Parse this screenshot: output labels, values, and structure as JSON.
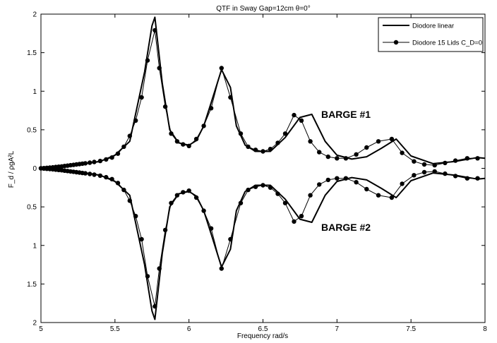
{
  "colors": {
    "line": "#000000",
    "background": "#ffffff"
  },
  "chart_data": {
    "type": "line",
    "title": "QTF in Sway Gap=12cm θ=0°",
    "xlabel": "Frequency rad/s",
    "ylabel": "F_d / ρgA²L",
    "xlim": [
      5,
      8
    ],
    "ylim": [
      -2,
      2
    ],
    "xticks": [
      "5",
      "5.5",
      "6",
      "6.5",
      "7",
      "7.5",
      "8"
    ],
    "yticks": [
      "2",
      "1.5",
      "1",
      "0.5",
      "0",
      "0.5",
      "1",
      "1.5",
      "2"
    ],
    "grid": false,
    "legend": {
      "placement": "top-right",
      "entries": [
        {
          "label": "Diodore linear",
          "marker": "none"
        },
        {
          "label": "Diodore 15 Lids C_D=0",
          "marker": "circle"
        }
      ]
    },
    "annotations": [
      "BARGE #1",
      "BARGE #2"
    ],
    "series": [
      {
        "name": "Diodore linear (BARGE #1)",
        "x": [
          5.0,
          5.1,
          5.2,
          5.3,
          5.4,
          5.5,
          5.6,
          5.7,
          5.75,
          5.77,
          5.82,
          5.87,
          5.93,
          6.0,
          6.05,
          6.1,
          6.15,
          6.22,
          6.28,
          6.32,
          6.38,
          6.45,
          6.55,
          6.65,
          6.75,
          6.83,
          6.92,
          7.0,
          7.1,
          7.2,
          7.3,
          7.4,
          7.5,
          7.65,
          7.8,
          7.95,
          8.0
        ],
        "y": [
          0.0,
          0.01,
          0.03,
          0.06,
          0.09,
          0.17,
          0.35,
          1.25,
          1.85,
          1.96,
          1.1,
          0.5,
          0.33,
          0.3,
          0.36,
          0.55,
          0.85,
          1.28,
          1.05,
          0.55,
          0.3,
          0.22,
          0.22,
          0.4,
          0.66,
          0.7,
          0.35,
          0.17,
          0.12,
          0.15,
          0.26,
          0.38,
          0.16,
          0.06,
          0.09,
          0.14,
          0.13
        ]
      },
      {
        "name": "Diodore 15 Lids C_D=0 (BARGE #1)",
        "x": [
          5.0,
          5.02,
          5.04,
          5.06,
          5.08,
          5.1,
          5.12,
          5.14,
          5.16,
          5.18,
          5.2,
          5.22,
          5.24,
          5.26,
          5.28,
          5.3,
          5.33,
          5.36,
          5.4,
          5.44,
          5.48,
          5.52,
          5.56,
          5.6,
          5.64,
          5.68,
          5.72,
          5.77,
          5.8,
          5.84,
          5.88,
          5.92,
          5.96,
          6.0,
          6.05,
          6.1,
          6.15,
          6.22,
          6.28,
          6.35,
          6.4,
          6.45,
          6.5,
          6.55,
          6.6,
          6.65,
          6.71,
          6.76,
          6.82,
          6.88,
          6.94,
          7.0,
          7.06,
          7.13,
          7.2,
          7.28,
          7.37,
          7.44,
          7.52,
          7.59,
          7.66,
          7.73,
          7.8,
          7.88,
          7.95
        ],
        "y": [
          0.0,
          0.003,
          0.006,
          0.009,
          0.013,
          0.017,
          0.021,
          0.025,
          0.03,
          0.035,
          0.04,
          0.045,
          0.05,
          0.055,
          0.06,
          0.065,
          0.073,
          0.082,
          0.095,
          0.115,
          0.14,
          0.19,
          0.28,
          0.42,
          0.62,
          0.92,
          1.4,
          1.79,
          1.3,
          0.8,
          0.45,
          0.35,
          0.31,
          0.29,
          0.38,
          0.55,
          0.78,
          1.3,
          0.92,
          0.45,
          0.28,
          0.24,
          0.22,
          0.25,
          0.33,
          0.45,
          0.69,
          0.62,
          0.35,
          0.21,
          0.15,
          0.13,
          0.13,
          0.18,
          0.27,
          0.35,
          0.38,
          0.2,
          0.09,
          0.05,
          0.04,
          0.07,
          0.1,
          0.13,
          0.13
        ]
      },
      {
        "name": "Diodore linear (BARGE #2)",
        "x": [
          5.0,
          5.1,
          5.2,
          5.3,
          5.4,
          5.5,
          5.6,
          5.7,
          5.75,
          5.77,
          5.82,
          5.87,
          5.93,
          6.0,
          6.05,
          6.1,
          6.15,
          6.22,
          6.28,
          6.32,
          6.38,
          6.45,
          6.55,
          6.65,
          6.75,
          6.83,
          6.92,
          7.0,
          7.1,
          7.2,
          7.3,
          7.4,
          7.5,
          7.65,
          7.8,
          7.95,
          8.0
        ],
        "y": [
          0.0,
          -0.01,
          -0.03,
          -0.06,
          -0.09,
          -0.17,
          -0.35,
          -1.25,
          -1.85,
          -1.96,
          -1.1,
          -0.5,
          -0.33,
          -0.3,
          -0.36,
          -0.55,
          -0.85,
          -1.28,
          -1.05,
          -0.55,
          -0.3,
          -0.22,
          -0.22,
          -0.4,
          -0.66,
          -0.7,
          -0.35,
          -0.17,
          -0.12,
          -0.15,
          -0.26,
          -0.38,
          -0.16,
          -0.06,
          -0.09,
          -0.14,
          -0.13
        ]
      },
      {
        "name": "Diodore 15 Lids C_D=0 (BARGE #2)",
        "x": [
          5.0,
          5.02,
          5.04,
          5.06,
          5.08,
          5.1,
          5.12,
          5.14,
          5.16,
          5.18,
          5.2,
          5.22,
          5.24,
          5.26,
          5.28,
          5.3,
          5.33,
          5.36,
          5.4,
          5.44,
          5.48,
          5.52,
          5.56,
          5.6,
          5.64,
          5.68,
          5.72,
          5.77,
          5.8,
          5.84,
          5.88,
          5.92,
          5.96,
          6.0,
          6.05,
          6.1,
          6.15,
          6.22,
          6.28,
          6.35,
          6.4,
          6.45,
          6.5,
          6.55,
          6.6,
          6.65,
          6.71,
          6.76,
          6.82,
          6.88,
          6.94,
          7.0,
          7.06,
          7.13,
          7.2,
          7.28,
          7.37,
          7.44,
          7.52,
          7.59,
          7.66,
          7.73,
          7.8,
          7.88,
          7.95
        ],
        "y": [
          0.0,
          -0.003,
          -0.006,
          -0.009,
          -0.013,
          -0.017,
          -0.021,
          -0.025,
          -0.03,
          -0.035,
          -0.04,
          -0.045,
          -0.05,
          -0.055,
          -0.06,
          -0.065,
          -0.073,
          -0.082,
          -0.095,
          -0.115,
          -0.14,
          -0.19,
          -0.28,
          -0.42,
          -0.62,
          -0.92,
          -1.4,
          -1.79,
          -1.3,
          -0.8,
          -0.45,
          -0.35,
          -0.31,
          -0.29,
          -0.38,
          -0.55,
          -0.78,
          -1.3,
          -0.92,
          -0.45,
          -0.28,
          -0.24,
          -0.22,
          -0.25,
          -0.33,
          -0.45,
          -0.69,
          -0.62,
          -0.35,
          -0.21,
          -0.15,
          -0.13,
          -0.13,
          -0.18,
          -0.27,
          -0.35,
          -0.38,
          -0.2,
          -0.09,
          -0.05,
          -0.04,
          -0.07,
          -0.1,
          -0.13,
          -0.13
        ]
      }
    ]
  }
}
